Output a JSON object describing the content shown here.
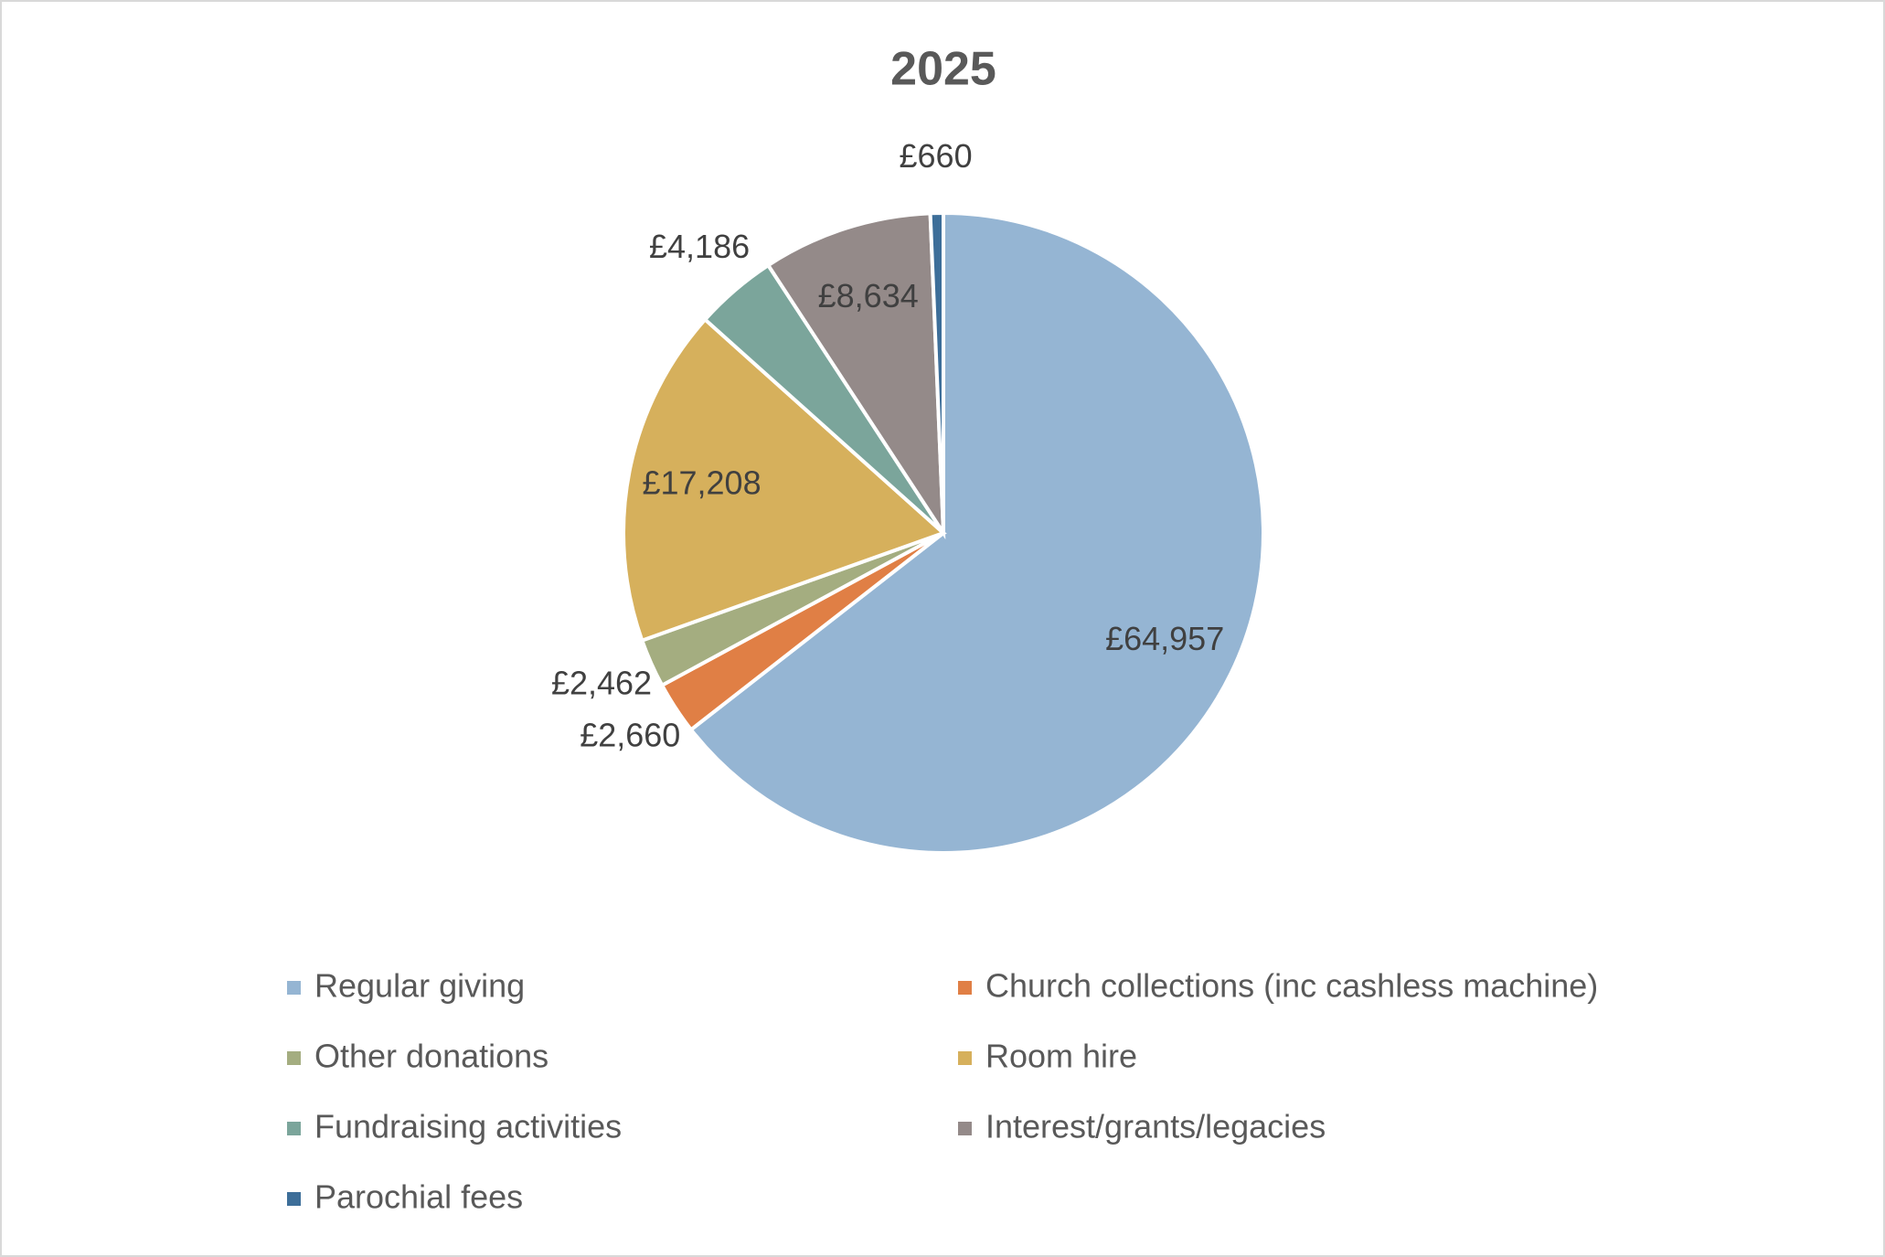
{
  "chart_data": {
    "type": "pie",
    "title": "2025",
    "categories": [
      "Regular giving",
      "Church collections (inc cashless machine)",
      "Other donations",
      "Room hire",
      "Fundraising activities",
      "Interest/grants/legacies",
      "Parochial fees"
    ],
    "values": [
      64957,
      2660,
      2462,
      17208,
      4186,
      8634,
      660
    ],
    "value_labels": [
      "£64,957",
      "£2,660",
      "£2,462",
      "£17,208",
      "£4,186",
      "£8,634",
      "£660"
    ],
    "colors": [
      "#95b5d3",
      "#e07f45",
      "#a4ad80",
      "#d6b05c",
      "#7ba59b",
      "#948a89",
      "#3d6e99"
    ],
    "legend": "bottom"
  }
}
